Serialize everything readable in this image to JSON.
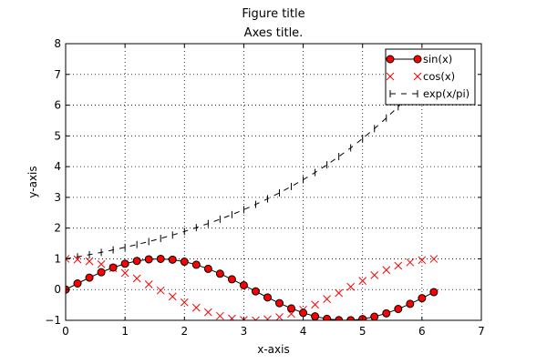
{
  "figure_title": "Figure title",
  "chart_data": {
    "type": "line",
    "title": "Axes title.",
    "xlabel": "x-axis",
    "ylabel": "y-axis",
    "xlim": [
      0,
      7
    ],
    "ylim": [
      -1,
      8
    ],
    "xticks": [
      0,
      1,
      2,
      3,
      4,
      5,
      6,
      7
    ],
    "yticks": [
      -1,
      0,
      1,
      2,
      3,
      4,
      5,
      6,
      7,
      8
    ],
    "grid": true,
    "legend_position": "top-right",
    "x": [
      0.0,
      0.2,
      0.4,
      0.6,
      0.8,
      1.0,
      1.2,
      1.4,
      1.6,
      1.8,
      2.0,
      2.2,
      2.4,
      2.6,
      2.8,
      3.0,
      3.2,
      3.4,
      3.6,
      3.8,
      4.0,
      4.2,
      4.4,
      4.6,
      4.8,
      5.0,
      5.2,
      5.4,
      5.6,
      5.8,
      6.0,
      6.2
    ],
    "series": [
      {
        "name": "sin(x)",
        "color": "#ff0000",
        "style": "solid line with circle markers",
        "values": [
          0.0,
          0.199,
          0.389,
          0.565,
          0.717,
          0.841,
          0.932,
          0.985,
          1.0,
          0.974,
          0.909,
          0.808,
          0.675,
          0.516,
          0.335,
          0.141,
          -0.058,
          -0.256,
          -0.443,
          -0.612,
          -0.757,
          -0.872,
          -0.952,
          -0.994,
          -0.996,
          -0.959,
          -0.883,
          -0.773,
          -0.631,
          -0.465,
          -0.279,
          -0.083
        ]
      },
      {
        "name": "cos(x)",
        "color": "#ff0000",
        "style": "x markers only",
        "values": [
          1.0,
          0.98,
          0.921,
          0.825,
          0.697,
          0.54,
          0.362,
          0.17,
          -0.029,
          -0.227,
          -0.416,
          -0.589,
          -0.737,
          -0.857,
          -0.942,
          -0.99,
          -0.998,
          -0.967,
          -0.897,
          -0.791,
          -0.654,
          -0.49,
          -0.307,
          -0.112,
          0.087,
          0.284,
          0.469,
          0.635,
          0.776,
          0.886,
          0.96,
          0.997
        ]
      },
      {
        "name": "exp(x/pi)",
        "color": "#000000",
        "style": "dashed line with vertical tick markers",
        "values": [
          1.0,
          1.066,
          1.136,
          1.21,
          1.29,
          1.375,
          1.465,
          1.562,
          1.664,
          1.774,
          1.891,
          2.015,
          2.148,
          2.289,
          2.439,
          2.6,
          2.771,
          2.953,
          3.147,
          3.354,
          3.574,
          3.809,
          4.06,
          4.327,
          4.611,
          4.914,
          5.237,
          5.582,
          5.948,
          6.34,
          6.756,
          7.2
        ]
      }
    ]
  }
}
